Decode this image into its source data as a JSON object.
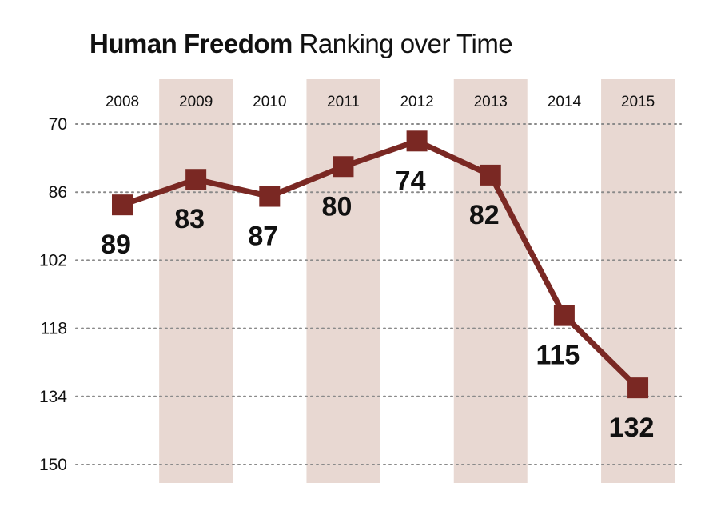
{
  "title": {
    "bold": "Human Freedom",
    "rest": "Ranking over Time"
  },
  "colors": {
    "line": "#7a2823",
    "band": "#e8d8d2",
    "grid": "#8a8a8a"
  },
  "chart_data": {
    "type": "line",
    "title": "Human Freedom Ranking over Time",
    "categories": [
      "2008",
      "2009",
      "2010",
      "2011",
      "2012",
      "2013",
      "2014",
      "2015"
    ],
    "values": [
      89,
      83,
      87,
      80,
      74,
      82,
      115,
      132
    ],
    "data_labels": [
      "89",
      "83",
      "87",
      "80",
      "74",
      "82",
      "115",
      "132"
    ],
    "y_ticks": [
      70,
      86,
      102,
      118,
      134,
      150
    ],
    "y_tick_labels": [
      "70",
      "86",
      "102",
      "118",
      "134",
      "150"
    ],
    "ylim": [
      70,
      150
    ],
    "y_inverted": true,
    "xlabel": "",
    "ylabel": "",
    "grid": "horizontal dotted",
    "shaded_categories": [
      "2009",
      "2011",
      "2013",
      "2015"
    ],
    "x_axis_position": "top"
  }
}
